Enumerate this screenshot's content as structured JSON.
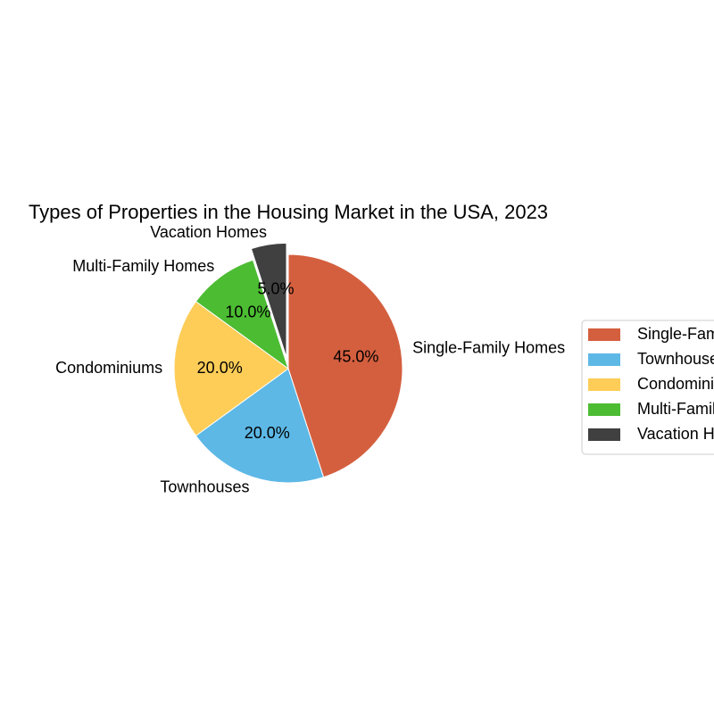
{
  "chart_data": {
    "type": "pie",
    "title": "Types of Properties in the Housing Market in the USA, 2023",
    "categories": [
      "Single-Family Homes",
      "Townhouses",
      "Condominiums",
      "Multi-Family Homes",
      "Vacation Homes"
    ],
    "values": [
      45,
      20,
      20,
      10,
      5
    ],
    "value_labels": [
      "45.0%",
      "20.0%",
      "20.0%",
      "10.0%",
      "5.0%"
    ],
    "colors": [
      "#d45f3f",
      "#5db8e6",
      "#fdcd58",
      "#4cbc32",
      "#404040"
    ],
    "exploded": [
      false,
      false,
      false,
      false,
      true
    ],
    "start_angle_deg": 90,
    "direction": "clockwise",
    "legend": {
      "placement": "right",
      "labels": [
        "Single-Family Homes",
        "Townhouses",
        "Condominiums",
        "Multi-Family Homes",
        "Vacation Homes"
      ]
    }
  }
}
